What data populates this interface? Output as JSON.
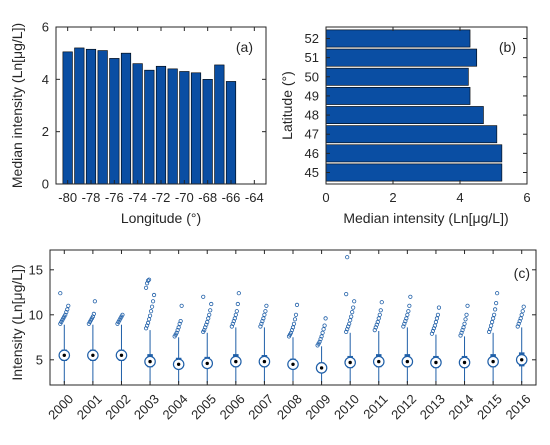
{
  "colors": {
    "bar": "#0a4ea3",
    "bar_edge": "#000000",
    "point": "#1f5fa8",
    "axis": "#262626"
  },
  "chart_data": [
    {
      "id": "a",
      "type": "bar",
      "panel_label": "(a)",
      "xlabel": "Longitude (°)",
      "ylabel": "Median intensity (Ln[μg/L])",
      "xlim": [
        -81,
        -63
      ],
      "ylim": [
        0,
        6
      ],
      "xticks": [
        -80,
        -78,
        -76,
        -74,
        -72,
        -70,
        -68,
        -66,
        -64
      ],
      "yticks": [
        0,
        2,
        4,
        6
      ],
      "categories": [
        -80,
        -79,
        -78,
        -77,
        -76,
        -75,
        -74,
        -73,
        -72,
        -71,
        -70,
        -69,
        -68,
        -67,
        -66
      ],
      "values": [
        5.05,
        5.2,
        5.15,
        5.1,
        4.8,
        5.0,
        4.6,
        4.35,
        4.5,
        4.4,
        4.3,
        4.25,
        4.0,
        4.55,
        3.92
      ]
    },
    {
      "id": "b",
      "type": "bar",
      "orientation": "horizontal",
      "panel_label": "(b)",
      "xlabel": "Median intensity (Ln[μg/L])",
      "ylabel": "Latitude (°)",
      "xlim": [
        0,
        6
      ],
      "ylim": [
        44.4,
        52.6
      ],
      "xticks": [
        0,
        2,
        4,
        6
      ],
      "yticks": [
        45,
        46,
        47,
        48,
        49,
        50,
        51,
        52
      ],
      "categories": [
        45,
        46,
        47,
        48,
        49,
        50,
        51,
        52
      ],
      "values": [
        5.25,
        5.25,
        5.1,
        4.7,
        4.3,
        4.25,
        4.5,
        4.3
      ]
    },
    {
      "id": "c",
      "type": "box",
      "panel_label": "(c)",
      "ylabel": "Intensity (Ln[μg/L])",
      "xlabel": "",
      "ylim": [
        2.2,
        17.2
      ],
      "yticks": [
        5,
        10,
        15
      ],
      "categories": [
        "2000",
        "2001",
        "2002",
        "2003",
        "2004",
        "2005",
        "2006",
        "2007",
        "2008",
        "2009",
        "2010",
        "2011",
        "2012",
        "2013",
        "2014",
        "2015",
        "2016"
      ],
      "boxes": [
        {
          "min": 2.4,
          "q1": 4.9,
          "median": 5.5,
          "q3": 6.1,
          "whisker_high": 8.9
        },
        {
          "min": 2.4,
          "q1": 4.9,
          "median": 5.5,
          "q3": 6.1,
          "whisker_high": 8.9
        },
        {
          "min": 2.4,
          "q1": 4.9,
          "median": 5.5,
          "q3": 6.1,
          "whisker_high": 8.9
        },
        {
          "min": 2.4,
          "q1": 4.2,
          "median": 4.8,
          "q3": 5.6,
          "whisker_high": 8.3
        },
        {
          "min": 2.4,
          "q1": 4.0,
          "median": 4.5,
          "q3": 5.2,
          "whisker_high": 7.5
        },
        {
          "min": 2.4,
          "q1": 4.1,
          "median": 4.6,
          "q3": 5.3,
          "whisker_high": 8.0
        },
        {
          "min": 2.4,
          "q1": 4.2,
          "median": 4.8,
          "q3": 5.6,
          "whisker_high": 8.6
        },
        {
          "min": 2.4,
          "q1": 4.2,
          "median": 4.8,
          "q3": 5.5,
          "whisker_high": 8.6
        },
        {
          "min": 2.4,
          "q1": 4.0,
          "median": 4.5,
          "q3": 5.1,
          "whisker_high": 7.5
        },
        {
          "min": 2.4,
          "q1": 3.6,
          "median": 4.1,
          "q3": 4.7,
          "whisker_high": 6.5
        },
        {
          "min": 2.4,
          "q1": 4.1,
          "median": 4.7,
          "q3": 5.4,
          "whisker_high": 8.0
        },
        {
          "min": 2.4,
          "q1": 4.2,
          "median": 4.8,
          "q3": 5.6,
          "whisker_high": 8.2
        },
        {
          "min": 2.4,
          "q1": 4.2,
          "median": 4.8,
          "q3": 5.6,
          "whisker_high": 8.6
        },
        {
          "min": 2.4,
          "q1": 4.1,
          "median": 4.7,
          "q3": 5.4,
          "whisker_high": 7.8
        },
        {
          "min": 2.4,
          "q1": 4.1,
          "median": 4.7,
          "q3": 5.4,
          "whisker_high": 7.6
        },
        {
          "min": 2.4,
          "q1": 4.2,
          "median": 4.8,
          "q3": 5.6,
          "whisker_high": 8.0
        },
        {
          "min": 2.4,
          "q1": 4.3,
          "median": 5.0,
          "q3": 5.8,
          "whisker_high": 8.6
        }
      ],
      "outliers": [
        [
          9.0,
          9.2,
          9.4,
          9.6,
          9.8,
          10.0,
          10.3,
          10.6,
          11.0,
          12.4
        ],
        [
          9.0,
          9.2,
          9.4,
          9.6,
          9.8,
          10.1,
          11.5
        ],
        [
          9.0,
          9.2,
          9.4,
          9.6,
          9.8,
          10.0
        ],
        [
          8.5,
          8.8,
          9.1,
          9.5,
          9.9,
          10.4,
          10.9,
          11.5,
          12.2,
          13.0,
          13.5,
          13.8,
          13.9
        ],
        [
          7.6,
          7.8,
          8.0,
          8.3,
          8.6,
          9.0,
          9.3,
          11.0
        ],
        [
          8.1,
          8.3,
          8.6,
          8.9,
          9.2,
          9.6,
          10.0,
          10.5,
          11.2,
          12.0
        ],
        [
          8.7,
          9.0,
          9.3,
          9.6,
          10.0,
          10.4,
          11.2,
          12.4
        ],
        [
          8.7,
          9.0,
          9.3,
          9.6,
          10.0,
          10.4,
          11.0
        ],
        [
          7.6,
          7.8,
          8.0,
          8.3,
          8.6,
          9.0,
          9.5,
          10.0,
          11.1
        ],
        [
          6.6,
          6.8,
          7.0,
          7.3,
          7.6,
          8.0,
          8.4,
          8.8,
          9.6
        ],
        [
          8.1,
          8.4,
          8.7,
          9.0,
          9.4,
          9.8,
          10.3,
          10.8,
          11.5,
          12.3,
          16.4
        ],
        [
          8.3,
          8.6,
          8.9,
          9.2,
          9.6,
          10.0,
          10.5,
          11.4
        ],
        [
          8.7,
          9.0,
          9.3,
          9.6,
          10.0,
          10.4,
          11.0,
          12.0
        ],
        [
          7.9,
          8.2,
          8.5,
          8.8,
          9.2,
          9.6,
          10.0,
          10.8
        ],
        [
          7.7,
          8.0,
          8.3,
          8.6,
          9.0,
          9.5,
          10.0,
          11.0
        ],
        [
          8.1,
          8.4,
          8.8,
          9.2,
          9.6,
          10.0,
          10.6,
          11.3,
          12.4
        ],
        [
          8.7,
          9.0,
          9.3,
          9.6,
          10.0,
          10.4,
          10.9
        ]
      ]
    }
  ]
}
